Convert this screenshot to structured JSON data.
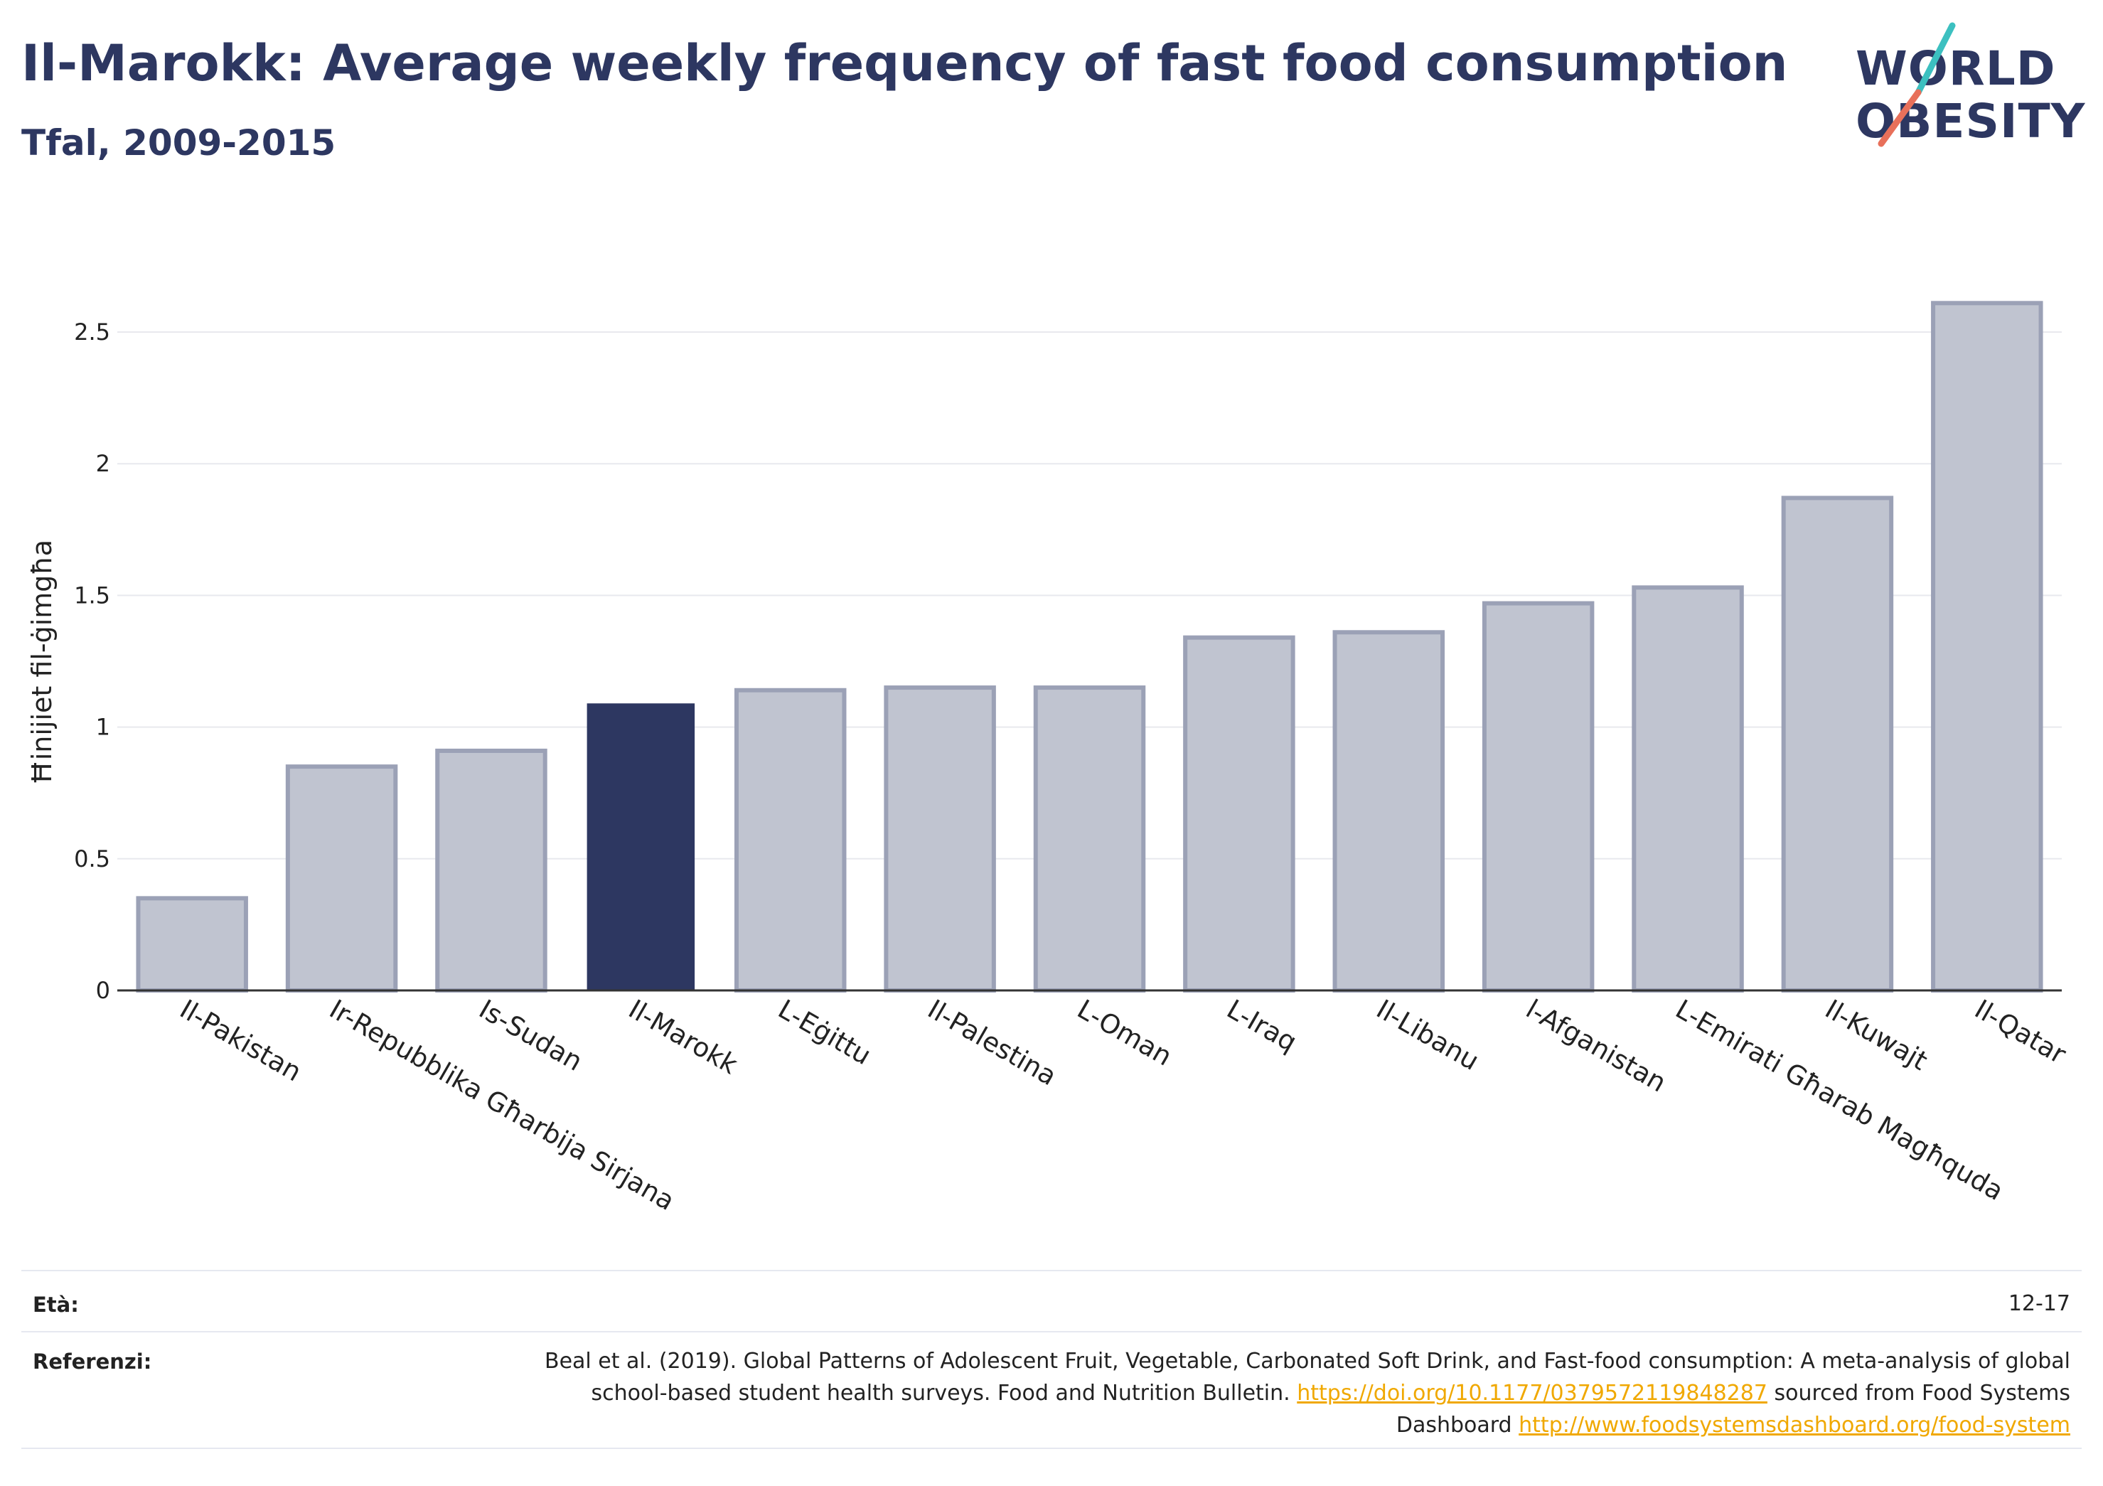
{
  "header": {
    "title": "Il-Marokk: Average weekly frequency of fast food consumption",
    "subtitle": "Tfal, 2009-2015"
  },
  "logo": {
    "line1": "WORLD",
    "line2": "OBESITY",
    "colors": {
      "text": "#2d3761",
      "slash_top": "#3cc0c0",
      "slash_bottom": "#e8705a"
    }
  },
  "colors": {
    "highlight_bar": "#2d3761",
    "other_bar_fill": "#c0c4d0",
    "other_bar_stroke": "#9ba1b6",
    "grid": "#e8e9ee",
    "axis": "#333333",
    "link": "#f0a800"
  },
  "chart_data": {
    "type": "bar",
    "title": "Il-Marokk: Average weekly frequency of fast food consumption",
    "subtitle": "Tfal, 2009-2015",
    "ylabel": "Ħinijiet fil-ġimgħa",
    "xlabel": "",
    "ylim": [
      0,
      2.6
    ],
    "yticks": [
      0,
      0.5,
      1,
      1.5,
      2,
      2.5
    ],
    "ytick_labels": [
      "0",
      "0.5",
      "1",
      "1.5",
      "2",
      "2.5"
    ],
    "grid": true,
    "legend": "none",
    "highlight": "Il-Marokk",
    "categories": [
      "Il-Pakistan",
      "Ir-Repubblika Għarbija Sirjana",
      "Is-Sudan",
      "Il-Marokk",
      "L-Eġittu",
      "Il-Palestina",
      "L-Oman",
      "L-Iraq",
      "Il-Libanu",
      "l-Afganistan",
      "L-Emirati Għarab Magħquda",
      "Il-Kuwajt",
      "Il-Qatar"
    ],
    "values": [
      0.35,
      0.85,
      0.91,
      1.09,
      1.14,
      1.15,
      1.15,
      1.34,
      1.36,
      1.47,
      1.53,
      1.87,
      2.61
    ]
  },
  "footer": {
    "age_label": "Età:",
    "age_value": "12-17",
    "ref_label": "Referenzi:",
    "ref_text_1": "Beal et al. (2019). Global Patterns of Adolescent Fruit, Vegetable, Carbonated Soft Drink, and Fast-food consumption: A meta-analysis of global school-based student health surveys. Food and Nutrition Bulletin.",
    "ref_link_1": "https://doi.org/10.1177/0379572119848287",
    "ref_text_2": "sourced from Food Systems Dashboard",
    "ref_link_2": "http://www.foodsystemsdashboard.org/food-system"
  }
}
